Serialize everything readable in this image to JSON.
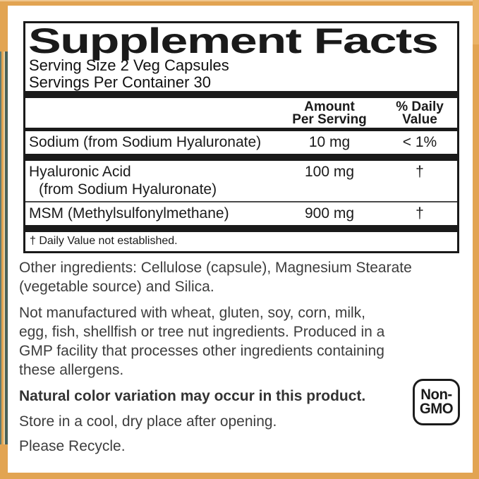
{
  "frame": {
    "border_color": "#E2A452",
    "left_accent_teal": "#465F57",
    "left_accent_tan": "#E8D3A2"
  },
  "facts": {
    "title": "Supplement Facts",
    "serving_size": "Serving Size 2 Veg Capsules",
    "servings_per_container": "Servings Per Container 30",
    "header": {
      "amount": "Amount\nPer Serving",
      "daily_value": "% Daily\nValue"
    },
    "rows": [
      {
        "name": "Sodium (from Sodium Hyaluronate)",
        "name2": "",
        "amount": "10 mg",
        "dv": "< 1%"
      },
      {
        "name": "Hyaluronic Acid",
        "name2": "(from Sodium Hyaluronate)",
        "amount": "100 mg",
        "dv": "†"
      },
      {
        "name": "MSM (Methylsulfonylmethane)",
        "name2": "",
        "amount": "900 mg",
        "dv": "†"
      }
    ],
    "footnote": "† Daily Value not established."
  },
  "below": {
    "other_ingredients": "Other ingredients: Cellulose (capsule), Magnesium Stearate\n(vegetable source) and Silica.",
    "allergen_statement": "Not manufactured with wheat, gluten, soy, corn, milk,\negg, fish, shellfish or tree nut ingredients. Produced in a\nGMP facility that processes other ingredients containing\nthese allergens.",
    "color_note": "Natural color variation may occur in this product.",
    "storage": "Store in a cool, dry place after opening.",
    "recycle": "Please Recycle.",
    "badge_line1": "Non-",
    "badge_line2": "GMO"
  }
}
